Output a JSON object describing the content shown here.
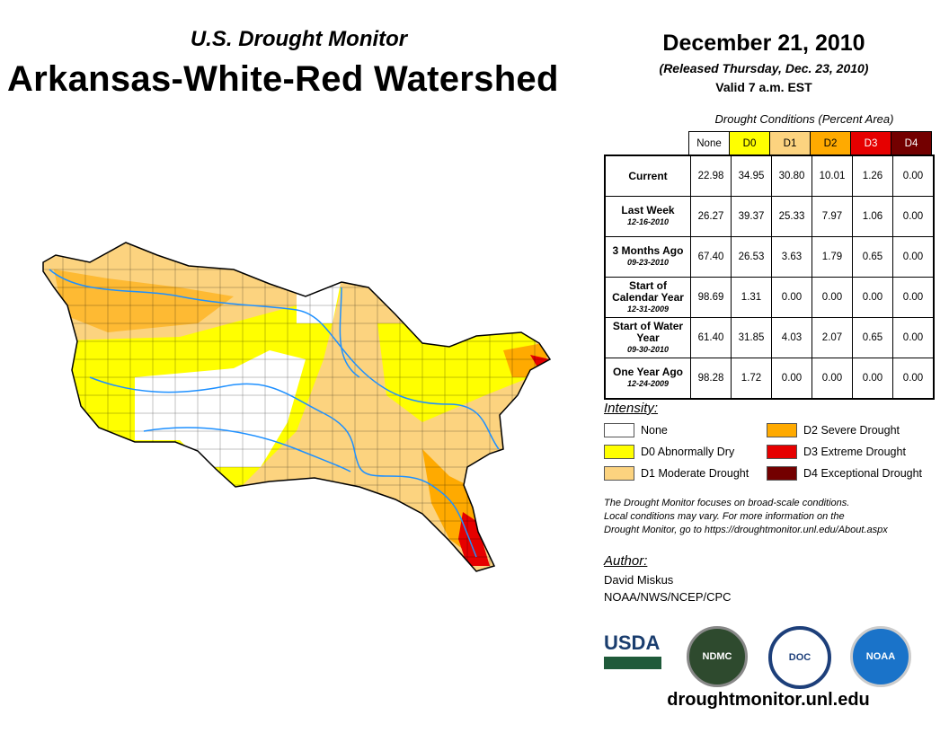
{
  "header": {
    "subtitle": "U.S. Drought Monitor",
    "title": "Arkansas-White-Red Watershed",
    "date": "December 21, 2010",
    "released": "(Released Thursday, Dec. 23, 2010)",
    "valid": "Valid 7 a.m. EST"
  },
  "table": {
    "caption": "Drought Conditions (Percent Area)",
    "columns": [
      {
        "label": "None",
        "color": "#FFFFFF",
        "text": "#000000"
      },
      {
        "label": "D0",
        "color": "#FFFF00",
        "text": "#000000"
      },
      {
        "label": "D1",
        "color": "#FCD37F",
        "text": "#000000"
      },
      {
        "label": "D2",
        "color": "#FFAA00",
        "text": "#000000"
      },
      {
        "label": "D3",
        "color": "#E60000",
        "text": "#FFFFFF"
      },
      {
        "label": "D4",
        "color": "#730000",
        "text": "#FFFFFF"
      }
    ],
    "rows": [
      {
        "label": "Current",
        "date": "",
        "values": [
          "22.98",
          "34.95",
          "30.80",
          "10.01",
          "1.26",
          "0.00"
        ]
      },
      {
        "label": "Last Week",
        "date": "12-16-2010",
        "values": [
          "26.27",
          "39.37",
          "25.33",
          "7.97",
          "1.06",
          "0.00"
        ]
      },
      {
        "label": "3 Months Ago",
        "date": "09-23-2010",
        "values": [
          "67.40",
          "26.53",
          "3.63",
          "1.79",
          "0.65",
          "0.00"
        ]
      },
      {
        "label": "Start of Calendar Year",
        "date": "12-31-2009",
        "values": [
          "98.69",
          "1.31",
          "0.00",
          "0.00",
          "0.00",
          "0.00"
        ]
      },
      {
        "label": "Start of Water Year",
        "date": "09-30-2010",
        "values": [
          "61.40",
          "31.85",
          "4.03",
          "2.07",
          "0.65",
          "0.00"
        ]
      },
      {
        "label": "One Year Ago",
        "date": "12-24-2009",
        "values": [
          "98.28",
          "1.72",
          "0.00",
          "0.00",
          "0.00",
          "0.00"
        ]
      }
    ]
  },
  "legend": {
    "title": "Intensity:",
    "items": [
      {
        "label": "None",
        "color": "#FFFFFF"
      },
      {
        "label": "D0 Abnormally Dry",
        "color": "#FFFF00"
      },
      {
        "label": "D1 Moderate Drought",
        "color": "#FCD37F"
      },
      {
        "label": "D2 Severe Drought",
        "color": "#FFAA00"
      },
      {
        "label": "D3 Extreme Drought",
        "color": "#E60000"
      },
      {
        "label": "D4 Exceptional Drought",
        "color": "#730000"
      }
    ]
  },
  "note": [
    "The Drought Monitor focuses on broad-scale conditions.",
    "Local conditions may vary. For more information on the",
    "Drought Monitor, go to https://droughtmonitor.unl.edu/About.aspx"
  ],
  "author": {
    "title": "Author:",
    "name": "David Miskus",
    "org": "NOAA/NWS/NCEP/CPC"
  },
  "logos": {
    "usda": "USDA",
    "ndmc": "NDMC",
    "doc": "DOC",
    "noaa": "NOAA"
  },
  "footer_url": "droughtmonitor.unl.edu",
  "map": {
    "river_color": "#1E90FF"
  }
}
